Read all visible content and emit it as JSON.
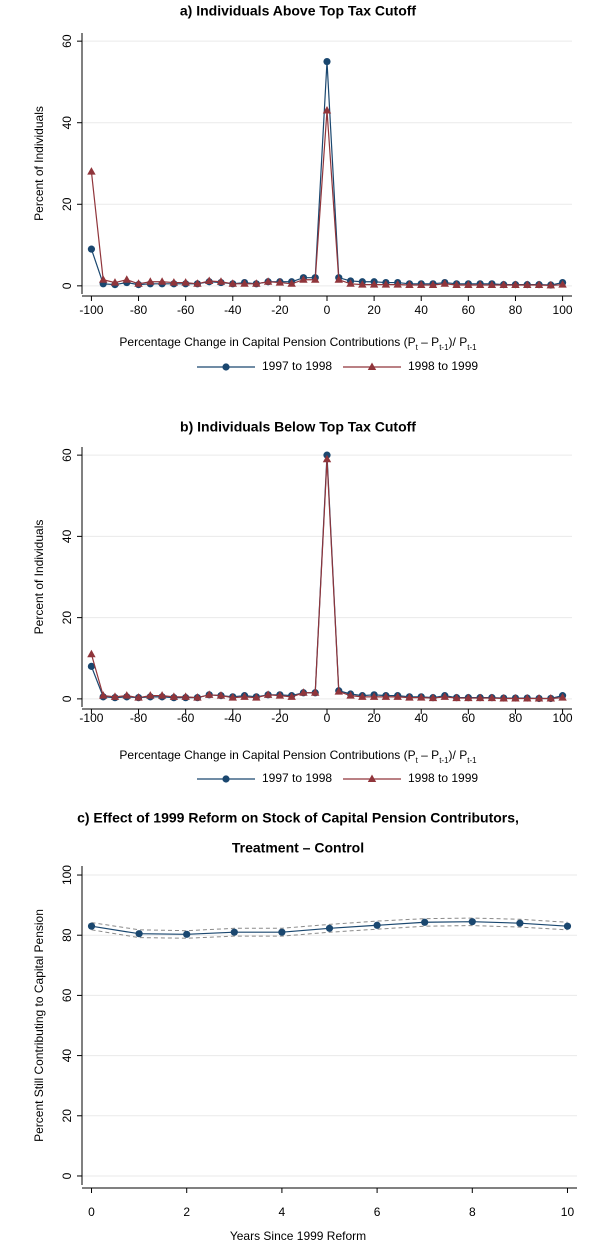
{
  "chart_data": [
    {
      "type": "line",
      "title": "a) Individuals Above Top Tax Cutoff",
      "x_label": [
        "Percentage Change in Capital Pension Contributions (P",
        "t",
        " – P",
        "t-1",
        ")/ P",
        "t-1"
      ],
      "y_label": "Percent of Individuals",
      "x": [
        -100,
        -95,
        -90,
        -85,
        -80,
        -75,
        -70,
        -65,
        -60,
        -55,
        -50,
        -45,
        -40,
        -35,
        -30,
        -25,
        -20,
        -15,
        -10,
        -5,
        0,
        5,
        10,
        15,
        20,
        25,
        30,
        35,
        40,
        45,
        50,
        55,
        60,
        65,
        70,
        75,
        80,
        85,
        90,
        95,
        100
      ],
      "series": [
        {
          "name": "1997 to 1998",
          "color": "#1a476f",
          "marker": "circle",
          "values": [
            9,
            0.5,
            0.3,
            0.8,
            0.3,
            0.5,
            0.5,
            0.5,
            0.5,
            0.5,
            1,
            0.8,
            0.5,
            0.8,
            0.5,
            1,
            1,
            1,
            2,
            2,
            55,
            2,
            1.2,
            1,
            1,
            0.8,
            0.8,
            0.5,
            0.5,
            0.5,
            0.8,
            0.5,
            0.5,
            0.5,
            0.5,
            0.3,
            0.3,
            0.3,
            0.3,
            0.2,
            0.8
          ]
        },
        {
          "name": "1998 to 1999",
          "color": "#90353b",
          "marker": "triangle",
          "values": [
            28,
            1.5,
            0.8,
            1.5,
            0.5,
            1,
            1,
            0.8,
            0.8,
            0.5,
            1.2,
            1,
            0.5,
            0.5,
            0.5,
            1,
            0.8,
            0.5,
            1.5,
            1.5,
            43,
            1.5,
            0.5,
            0.3,
            0.3,
            0.3,
            0.3,
            0.2,
            0.2,
            0.2,
            0.5,
            0.2,
            0.2,
            0.2,
            0.2,
            0.2,
            0.2,
            0.2,
            0.2,
            0.1,
            0.3
          ]
        }
      ],
      "xlim": [
        -104,
        104
      ],
      "xticks": [
        -100,
        -80,
        -60,
        -40,
        -20,
        0,
        20,
        40,
        60,
        80,
        100
      ],
      "ylim": [
        -2,
        62
      ],
      "yticks": [
        0,
        20,
        40,
        60
      ],
      "grid": true,
      "legend": "bottom"
    },
    {
      "type": "line",
      "title": "b) Individuals Below Top Tax Cutoff",
      "x_label": [
        "Percentage Change in Capital Pension Contributions (P",
        "t",
        " – P",
        "t-1",
        ")/ P",
        "t-1"
      ],
      "y_label": "Percent of Individuals",
      "x": [
        -100,
        -95,
        -90,
        -85,
        -80,
        -75,
        -70,
        -65,
        -60,
        -55,
        -50,
        -45,
        -40,
        -35,
        -30,
        -25,
        -20,
        -15,
        -10,
        -5,
        0,
        5,
        10,
        15,
        20,
        25,
        30,
        35,
        40,
        45,
        50,
        55,
        60,
        65,
        70,
        75,
        80,
        85,
        90,
        95,
        100
      ],
      "series": [
        {
          "name": "1997 to 1998",
          "color": "#1a476f",
          "marker": "circle",
          "values": [
            8,
            0.5,
            0.3,
            0.5,
            0.3,
            0.5,
            0.5,
            0.3,
            0.3,
            0.3,
            1,
            0.8,
            0.5,
            0.8,
            0.5,
            1,
            1,
            0.8,
            1.5,
            1.5,
            60,
            2,
            1.2,
            0.8,
            1,
            0.8,
            0.8,
            0.5,
            0.5,
            0.3,
            0.8,
            0.3,
            0.3,
            0.3,
            0.3,
            0.2,
            0.2,
            0.2,
            0.1,
            0.1,
            0.8
          ]
        },
        {
          "name": "1998 to 1999",
          "color": "#90353b",
          "marker": "triangle",
          "values": [
            11,
            0.8,
            0.5,
            0.8,
            0.3,
            0.8,
            0.8,
            0.5,
            0.5,
            0.3,
            1,
            0.8,
            0.3,
            0.5,
            0.3,
            1,
            0.8,
            0.5,
            1.5,
            1.5,
            59,
            1.8,
            0.8,
            0.5,
            0.5,
            0.5,
            0.5,
            0.3,
            0.3,
            0.2,
            0.5,
            0.2,
            0.2,
            0.2,
            0.2,
            0.1,
            0.1,
            0.1,
            0.1,
            0.1,
            0.3
          ]
        }
      ],
      "xlim": [
        -104,
        104
      ],
      "xticks": [
        -100,
        -80,
        -60,
        -40,
        -20,
        0,
        20,
        40,
        60,
        80,
        100
      ],
      "ylim": [
        -2,
        62
      ],
      "yticks": [
        0,
        20,
        40,
        60
      ],
      "grid": true,
      "legend": "bottom"
    },
    {
      "type": "line",
      "title": [
        "c) Effect of 1999 Reform on Stock of Capital Pension Contributors,",
        "Treatment – Control"
      ],
      "x_label": [
        "Years Since 1999 Reform"
      ],
      "y_label": "Percent Still Contributing to Capital Pension",
      "x": [
        0,
        1,
        2,
        3,
        4,
        5,
        6,
        7,
        8,
        9,
        10
      ],
      "series": [
        {
          "color": "#1a476f",
          "marker": "circle",
          "values": [
            83,
            80.5,
            80.3,
            81,
            81,
            82.3,
            83.3,
            84.3,
            84.5,
            84,
            83
          ]
        }
      ],
      "ci": {
        "color": "#8a8a8a",
        "upper": [
          84.2,
          81.8,
          81.5,
          82.3,
          82.3,
          83.6,
          84.7,
          85.5,
          85.7,
          85.3,
          84.3
        ],
        "lower": [
          81.8,
          79.2,
          79,
          79.7,
          79.7,
          81,
          82,
          83,
          83.2,
          82.7,
          81.8
        ]
      },
      "xlim": [
        -0.2,
        10.2
      ],
      "xticks": [
        0,
        2,
        4,
        6,
        8,
        10
      ],
      "ylim": [
        -3,
        103
      ],
      "yticks": [
        0,
        20,
        40,
        60,
        80,
        100
      ],
      "grid": true,
      "legend": false
    }
  ]
}
